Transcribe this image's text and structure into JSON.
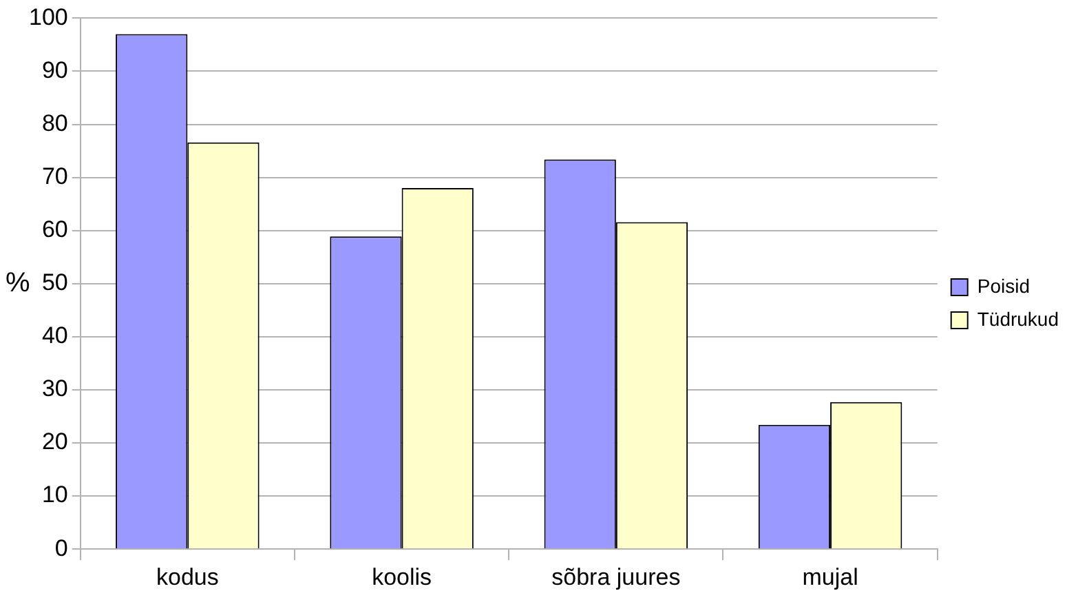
{
  "chart_data": {
    "type": "bar",
    "ylabel": "%",
    "categories": [
      "kodus",
      "koolis",
      "sõbra juures",
      "mujal"
    ],
    "series": [
      {
        "name": "Poisid",
        "color": "#9999ff",
        "values": [
          97,
          58.9,
          73.4,
          23.4
        ]
      },
      {
        "name": "Tüdrukud",
        "color": "#ffffcc",
        "values": [
          76.6,
          68,
          61.6,
          27.7
        ]
      }
    ],
    "ylim": [
      0,
      100
    ],
    "yticks": [
      0,
      10,
      20,
      30,
      40,
      50,
      60,
      70,
      80,
      90,
      100
    ],
    "grid": "y",
    "legend": "right"
  }
}
